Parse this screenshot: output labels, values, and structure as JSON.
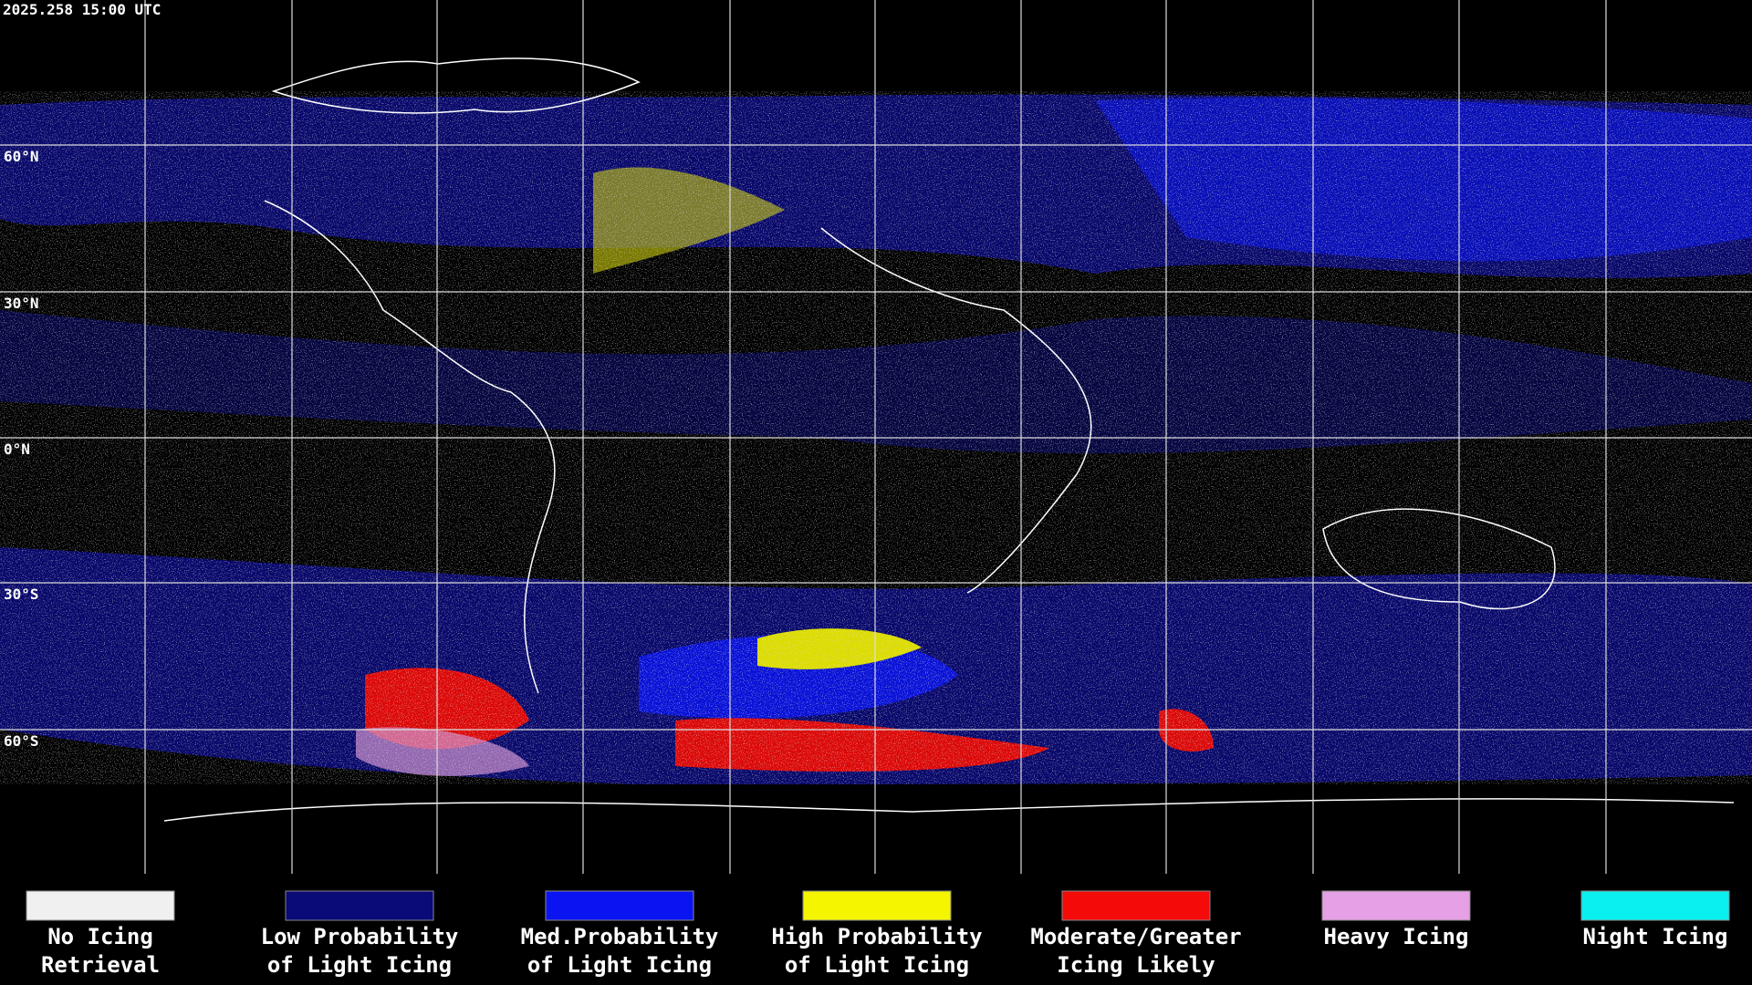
{
  "header": {
    "timestamp": "2025.258 15:00 UTC"
  },
  "map": {
    "latitude_labels": [
      "60°N",
      "30°N",
      "0°N",
      "30°S",
      "60°S"
    ]
  },
  "legend": {
    "items": [
      {
        "lines": [
          "No Icing",
          "Retrieval"
        ],
        "color": "#f0f0f0"
      },
      {
        "lines": [
          "Low Probability",
          "of Light Icing"
        ],
        "color": "#0a0a78"
      },
      {
        "lines": [
          "Med.Probability",
          "of Light Icing"
        ],
        "color": "#0a14f0"
      },
      {
        "lines": [
          "High Probability",
          "of Light Icing"
        ],
        "color": "#f5f500"
      },
      {
        "lines": [
          "Moderate/Greater",
          "Icing Likely"
        ],
        "color": "#f50a0a"
      },
      {
        "lines": [
          "Heavy Icing"
        ],
        "color": "#e6a0e6"
      },
      {
        "lines": [
          "Night Icing"
        ],
        "color": "#0af0f0"
      }
    ]
  }
}
